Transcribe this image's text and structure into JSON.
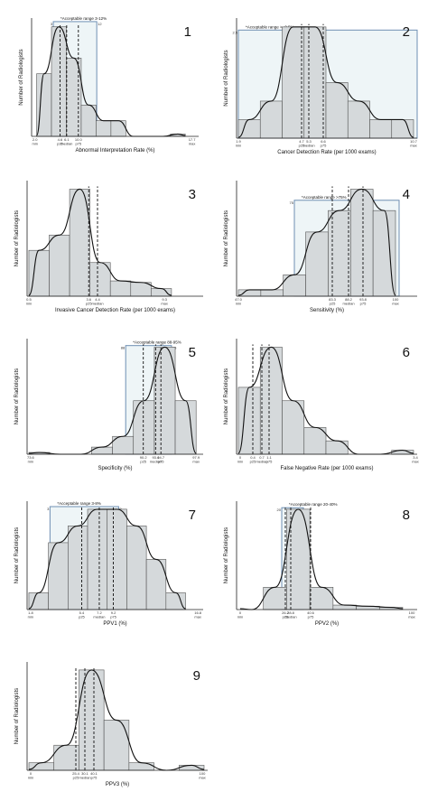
{
  "chart_data": [
    {
      "type": "bar",
      "panel": "1",
      "xlabel": "Abnormal Interpretation Rate (%)",
      "ylabel": "Number of Radiologists",
      "acceptable_range": "*Acceptable range 3-12%",
      "range_ticks": [
        "3",
        "12"
      ],
      "values": [
        4,
        7,
        5,
        2,
        1,
        1,
        0,
        0,
        0,
        0.15
      ],
      "ticks": [
        "2.0\nmin",
        "4.6\np25",
        "6.1\nmedian",
        "10.0\np75",
        "17.7\nmax"
      ],
      "stats": {
        "p25": 4.6,
        "median": 6.1,
        "p75": 10.0
      }
    },
    {
      "type": "bar",
      "panel": "2",
      "xlabel": "Cancer Detection Rate (per 1000 exams)",
      "ylabel": "Number of Radiologists",
      "acceptable_range": "*Acceptable range >=2.5%",
      "range_ticks": [
        "2.5",
        ""
      ],
      "values": [
        1,
        2,
        6,
        6,
        3,
        2,
        1,
        1
      ],
      "ticks": [
        "1.9\nmin",
        "4.7\np25",
        "5.3\nmedian",
        "6.6\np75",
        "10.7\nmax"
      ],
      "stats": {
        "p25": 4.7,
        "median": 5.3,
        "p75": 6.6
      }
    },
    {
      "type": "bar",
      "panel": "3",
      "xlabel": "Invasive Cancer Detection Rate (per 1000 exams)",
      "ylabel": "Number of Radiologists",
      "values": [
        3,
        4,
        7,
        2.2,
        1,
        0.9,
        0.5
      ],
      "ticks": [
        "0.5\nmin",
        "3.6\np25",
        "4.4\nmedian",
        "9.3\nmax"
      ],
      "stats": {
        "p25": 3.6,
        "median": 4.4
      }
    },
    {
      "type": "bar",
      "panel": "4",
      "xlabel": "Sensitivity (%)",
      "ylabel": "Number of Radiologists",
      "acceptable_range": "*Acceptable range >75%",
      "range_ticks": [
        "75",
        ""
      ],
      "values": [
        0.3,
        0.3,
        1,
        3,
        4,
        5,
        4
      ],
      "ticks": [
        "47.0\nmin",
        "83.3\np25",
        "88.2\nmedian",
        "93.8\np75",
        "100\nmax"
      ],
      "stats": {
        "p25": 83.3,
        "median": 88.2,
        "p75": 93.8
      }
    },
    {
      "type": "bar",
      "panel": "5",
      "xlabel": "Specificity (%)",
      "ylabel": "Number of Radiologists",
      "acceptable_range": "*Acceptable range 88-95%",
      "range_ticks": [
        "88",
        "95"
      ],
      "values": [
        0.1,
        0,
        0,
        0.4,
        1,
        3,
        6,
        3
      ],
      "ticks": [
        "73.6\nmin",
        "90.2\np25",
        "93.4\nmedian",
        "94.7\np75",
        "97.9\nmax"
      ],
      "stats": {
        "p25": 90.2,
        "median": 93.4,
        "p75": 94.7
      }
    },
    {
      "type": "bar",
      "panel": "6",
      "xlabel": "False Negative Rate (per 1000 exams)",
      "ylabel": "Number of Radiologists",
      "values": [
        5,
        8,
        4,
        2,
        1,
        0,
        0,
        0.3
      ],
      "ticks": [
        "0\nmin",
        "0.4\np25",
        "0.7\nmedian",
        "1.1\np75",
        "3.4\nmax"
      ],
      "stats": {
        "p25": 0.4,
        "median": 0.7,
        "p75": 1.1
      }
    },
    {
      "type": "bar",
      "panel": "7",
      "xlabel": "PPV1 (%)",
      "ylabel": "Number of Radiologists",
      "acceptable_range": "*Acceptable range 3-8%",
      "range_ticks": [
        "3",
        "8"
      ],
      "values": [
        1,
        4,
        5,
        6,
        6,
        5,
        3,
        1
      ],
      "ticks": [
        "1.8\nmin",
        "5.4\np25",
        "7.2\nmedian",
        "9.2\np75",
        "16.8\nmax"
      ],
      "stats": {
        "p25": 5.4,
        "median": 7.2,
        "p75": 9.2
      }
    },
    {
      "type": "bar",
      "panel": "8",
      "xlabel": "PPV2 (%)",
      "ylabel": "Number of Radiologists",
      "acceptable_range": "*Acceptable range 20-40%",
      "range_ticks": [
        "20",
        "40"
      ],
      "values": [
        0,
        2,
        9,
        2,
        0.4,
        0.3,
        0.2
      ],
      "ticks": [
        "0\nmin",
        "26.2\np25",
        "28.8\nmedian",
        "40.6\np75",
        "100\nmax"
      ],
      "stats": {
        "p25": 26.2,
        "median": 28.8,
        "p75": 40.6
      }
    },
    {
      "type": "bar",
      "panel": "9",
      "xlabel": "PPV3 (%)",
      "ylabel": "Number of Radiologists",
      "values": [
        0.3,
        1,
        4,
        2,
        0.3,
        0,
        0.2
      ],
      "ticks": [
        "0\nmin",
        "25.4\np25",
        "30.1\nmedian",
        "40.1\np75",
        "100\nmax"
      ],
      "stats": {
        "p25": 25.4,
        "median": 30.1,
        "p75": 40.1
      }
    }
  ]
}
